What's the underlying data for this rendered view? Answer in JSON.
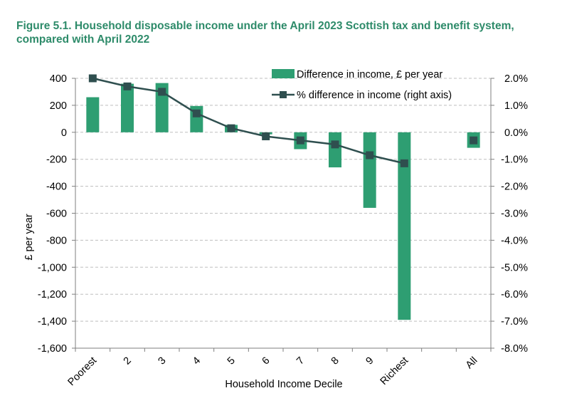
{
  "figure": {
    "title": "Figure 5.1. Household disposable income under the April 2023 Scottish tax and benefit system, compared with April 2022"
  },
  "colors": {
    "title": "#2e8b6a",
    "bar": "#2e9e72",
    "line": "#2f4f4f",
    "grid": "#bfbfbf",
    "axis": "#7f7f7f"
  },
  "chart_data": {
    "type": "bar",
    "title": "Household disposable income under the April 2023 Scottish tax and benefit system, compared with April 2022",
    "xlabel": "Household Income Decile",
    "ylabel": "£ per year",
    "ylabel_right": "",
    "categories": [
      "Poorest",
      "2",
      "3",
      "4",
      "5",
      "6",
      "7",
      "8",
      "9",
      "Richest",
      "",
      "All"
    ],
    "series": [
      {
        "name": "Difference in income, £ per year",
        "type": "bar",
        "axis": "left",
        "values": [
          260,
          360,
          365,
          195,
          55,
          -15,
          -125,
          -260,
          -560,
          -1390,
          null,
          -115
        ]
      },
      {
        "name": "% difference in income (right axis)",
        "type": "line",
        "axis": "right",
        "values": [
          2.0,
          1.7,
          1.5,
          0.7,
          0.15,
          -0.15,
          -0.3,
          -0.45,
          -0.85,
          -1.15,
          null,
          -0.3
        ]
      }
    ],
    "ylim": [
      -1600,
      400
    ],
    "ylim_right": [
      -8.0,
      2.0
    ],
    "yticks": [
      "400",
      "200",
      "0",
      "-200",
      "-400",
      "-600",
      "-800",
      "-1,000",
      "-1,200",
      "-1,400",
      "-1,600"
    ],
    "yticks_right": [
      "2.0%",
      "1.0%",
      "0.0%",
      "-1.0%",
      "-2.0%",
      "-3.0%",
      "-4.0%",
      "-5.0%",
      "-6.0%",
      "-7.0%",
      "-8.0%"
    ],
    "grid": true,
    "legend": "top-right"
  }
}
